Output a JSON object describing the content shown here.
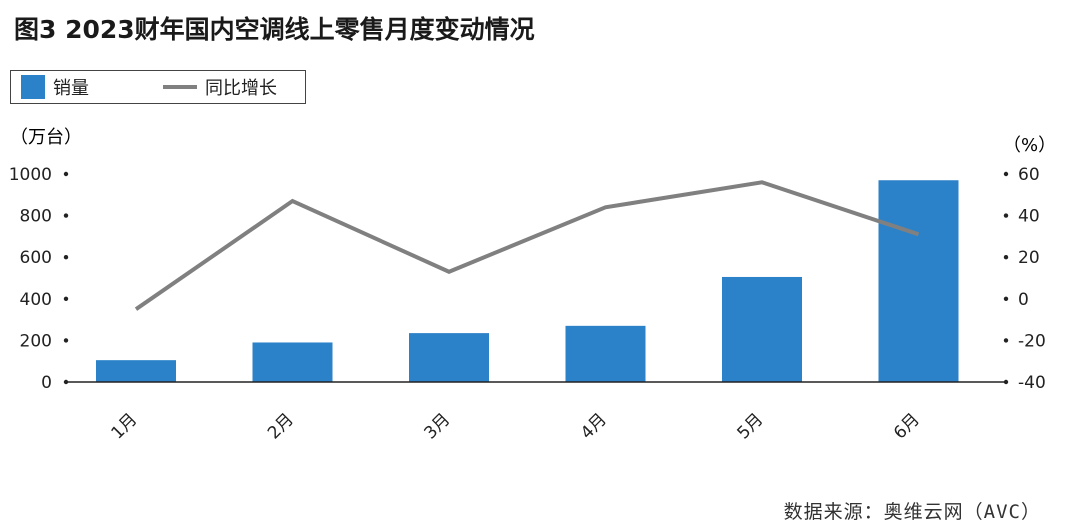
{
  "figure": {
    "title": "图3   2023财年国内空调线上零售月度变动情况",
    "source": "数据来源：奥维云网（AVC）"
  },
  "colors": {
    "bar": "#2b82c9",
    "line": "#808080",
    "axis": "#222222",
    "text": "#222222"
  },
  "chart_data": {
    "type": "bar",
    "categories": [
      "1月",
      "2月",
      "3月",
      "4月",
      "5月",
      "6月"
    ],
    "series": [
      {
        "name": "销量",
        "type": "bar",
        "axis": "left",
        "values": [
          105,
          190,
          235,
          270,
          505,
          970
        ]
      },
      {
        "name": "同比增长",
        "type": "line",
        "axis": "right",
        "values": [
          -5,
          47,
          13,
          44,
          56,
          31
        ]
      }
    ],
    "y_left": {
      "label": "（万台）",
      "ylim": [
        0,
        1000
      ],
      "ticks": [
        "0",
        "200",
        "400",
        "600",
        "800",
        "1000"
      ]
    },
    "y_right": {
      "label": "（%）",
      "ylim": [
        -40,
        60
      ],
      "ticks": [
        "-40",
        "-20",
        "0",
        "20",
        "40",
        "60"
      ]
    },
    "legend": "top-left",
    "grid": false
  }
}
